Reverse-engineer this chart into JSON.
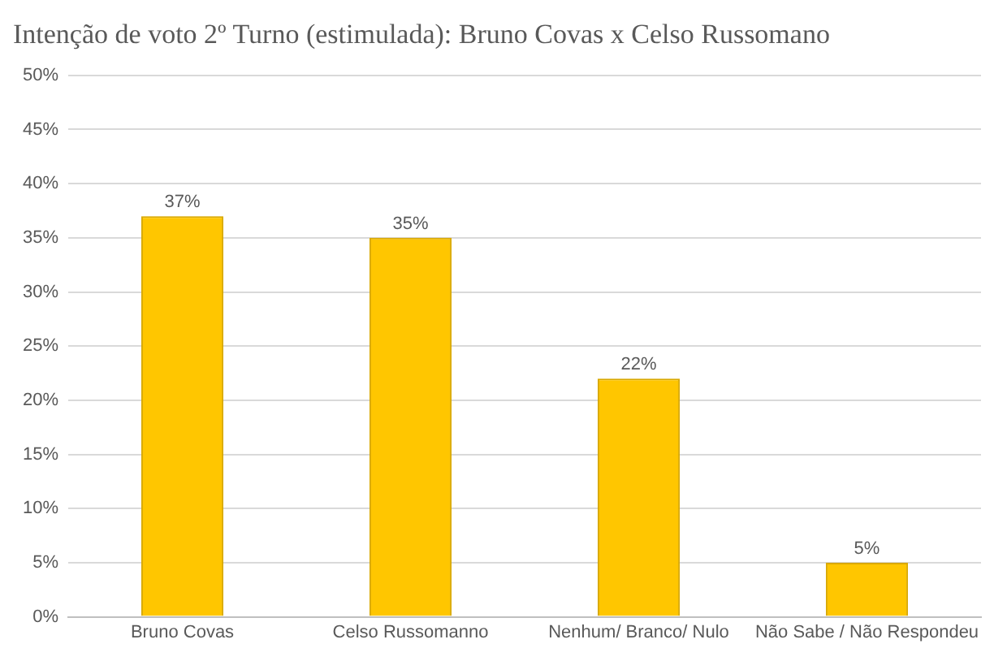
{
  "chart_data": {
    "type": "bar",
    "title": "Intenção de voto 2º Turno (estimulada): Bruno Covas x Celso Russomano",
    "categories": [
      "Bruno Covas",
      "Celso Russomanno",
      "Nenhum/ Branco/ Nulo",
      "Não Sabe / Não Respondeu"
    ],
    "values": [
      37,
      35,
      22,
      5
    ],
    "color": "#ffc600",
    "value_labels": [
      "37%",
      "35%",
      "22%",
      "5%"
    ],
    "ylim": [
      0,
      50
    ],
    "yticks": [
      {
        "value": 0,
        "label": "0%"
      },
      {
        "value": 5,
        "label": "5%"
      },
      {
        "value": 10,
        "label": "10%"
      },
      {
        "value": 15,
        "label": "15%"
      },
      {
        "value": 20,
        "label": "20%"
      },
      {
        "value": 25,
        "label": "25%"
      },
      {
        "value": 30,
        "label": "30%"
      },
      {
        "value": 35,
        "label": "35%"
      },
      {
        "value": 40,
        "label": "40%"
      },
      {
        "value": 45,
        "label": "45%"
      },
      {
        "value": 50,
        "label": "50%"
      }
    ],
    "grid": "y",
    "legend": false
  }
}
